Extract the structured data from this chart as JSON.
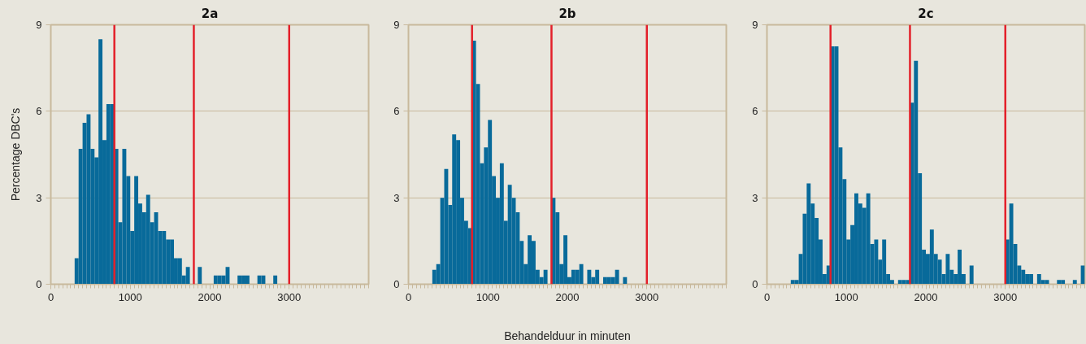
{
  "chart_data": [
    {
      "type": "histogram",
      "title": "2a",
      "ylabel": "Percentage DBC's",
      "color": "#086a9a",
      "bins": [
        300,
        350,
        400,
        450,
        500,
        550,
        600,
        650,
        700,
        750,
        800,
        850,
        900,
        950,
        1000,
        1050,
        1100,
        1150,
        1200,
        1250,
        1300,
        1350,
        1400,
        1450,
        1500,
        1550,
        1600,
        1650,
        1700,
        1750,
        1800,
        1850,
        1900,
        1950,
        2000,
        2050,
        2100,
        2150,
        2200,
        2250,
        2300,
        2350,
        2400,
        2450,
        2500,
        2550,
        2600,
        2650,
        2700,
        2750,
        2800,
        2850,
        2900,
        2950,
        3000,
        3050,
        3100,
        3150,
        3200,
        3250,
        3300,
        3350,
        3400,
        3450,
        3500,
        3550,
        3600,
        3650,
        3700,
        3750,
        3800,
        3850,
        3900,
        3950,
        4000
      ],
      "values": [
        0.9,
        4.7,
        5.6,
        5.9,
        4.7,
        4.4,
        8.5,
        5.0,
        6.25,
        6.25,
        4.7,
        2.15,
        4.7,
        3.75,
        1.85,
        3.75,
        2.8,
        2.5,
        3.1,
        2.15,
        2.5,
        1.85,
        1.85,
        1.55,
        1.55,
        0.9,
        0.9,
        0.3,
        0.6,
        0,
        0,
        0.6,
        0,
        0,
        0,
        0.3,
        0.3,
        0.3,
        0.6,
        0,
        0,
        0.3,
        0.3,
        0.3,
        0,
        0,
        0.3,
        0.3,
        0,
        0,
        0.3,
        0,
        0,
        0,
        0,
        0,
        0,
        0,
        0,
        0,
        0,
        0,
        0,
        0,
        0,
        0,
        0,
        0,
        0,
        0,
        0,
        0,
        0,
        0
      ],
      "xlim": [
        0,
        4000
      ],
      "ylim": [
        0,
        9
      ],
      "xticks": [
        0,
        1000,
        2000,
        3000
      ],
      "yticks": [
        0,
        3,
        6,
        9
      ],
      "grid": "y",
      "ref_lines": [
        {
          "axis": "x",
          "value": 800,
          "color": "#e3202a"
        },
        {
          "axis": "x",
          "value": 1800,
          "color": "#e3202a"
        },
        {
          "axis": "x",
          "value": 3000,
          "color": "#e3202a"
        }
      ]
    },
    {
      "type": "histogram",
      "title": "2b",
      "xlabel": "Behandelduur in minuten",
      "color": "#086a9a",
      "bins": [
        300,
        350,
        400,
        450,
        500,
        550,
        600,
        650,
        700,
        750,
        800,
        850,
        900,
        950,
        1000,
        1050,
        1100,
        1150,
        1200,
        1250,
        1300,
        1350,
        1400,
        1450,
        1500,
        1550,
        1600,
        1650,
        1700,
        1750,
        1800,
        1850,
        1900,
        1950,
        2000,
        2050,
        2100,
        2150,
        2200,
        2250,
        2300,
        2350,
        2400,
        2450,
        2500,
        2550,
        2600,
        2650,
        2700,
        2750,
        2800,
        2850,
        2900,
        2950,
        3000,
        3050,
        3100,
        3150,
        3200,
        3250,
        3300,
        3350,
        3400,
        3450,
        3500,
        3550,
        3600,
        3650,
        3700,
        3750,
        3800,
        3850,
        3900,
        3950,
        4000
      ],
      "values": [
        0.5,
        0.7,
        3.0,
        4.0,
        2.75,
        5.2,
        5.0,
        3.0,
        2.2,
        1.95,
        8.45,
        6.95,
        4.2,
        4.75,
        5.7,
        3.75,
        3.0,
        4.2,
        2.2,
        3.45,
        3.0,
        2.5,
        1.5,
        0.7,
        1.7,
        1.5,
        0.5,
        0.25,
        0.5,
        0,
        3.0,
        2.5,
        0.7,
        1.7,
        0.25,
        0.5,
        0.5,
        0.7,
        0,
        0.5,
        0.25,
        0.5,
        0,
        0.25,
        0.25,
        0.25,
        0.5,
        0,
        0.25,
        0,
        0,
        0,
        0,
        0,
        0,
        0,
        0,
        0,
        0,
        0,
        0,
        0,
        0,
        0,
        0,
        0,
        0,
        0,
        0,
        0,
        0,
        0,
        0,
        0
      ],
      "xlim": [
        0,
        4000
      ],
      "ylim": [
        0,
        9
      ],
      "xticks": [
        0,
        1000,
        2000,
        3000
      ],
      "yticks": [
        0,
        3,
        6,
        9
      ],
      "grid": "y",
      "ref_lines": [
        {
          "axis": "x",
          "value": 800,
          "color": "#e3202a"
        },
        {
          "axis": "x",
          "value": 1800,
          "color": "#e3202a"
        },
        {
          "axis": "x",
          "value": 3000,
          "color": "#e3202a"
        }
      ]
    },
    {
      "type": "histogram",
      "title": "2c",
      "color": "#086a9a",
      "bins": [
        300,
        350,
        400,
        450,
        500,
        550,
        600,
        650,
        700,
        750,
        800,
        850,
        900,
        950,
        1000,
        1050,
        1100,
        1150,
        1200,
        1250,
        1300,
        1350,
        1400,
        1450,
        1500,
        1550,
        1600,
        1650,
        1700,
        1750,
        1800,
        1850,
        1900,
        1950,
        2000,
        2050,
        2100,
        2150,
        2200,
        2250,
        2300,
        2350,
        2400,
        2450,
        2500,
        2550,
        2600,
        2650,
        2700,
        2750,
        2800,
        2850,
        2900,
        2950,
        3000,
        3050,
        3100,
        3150,
        3200,
        3250,
        3300,
        3350,
        3400,
        3450,
        3500,
        3550,
        3600,
        3650,
        3700,
        3750,
        3800,
        3850,
        3900,
        3950,
        4000
      ],
      "values": [
        0.15,
        0.15,
        1.05,
        2.45,
        3.5,
        2.8,
        2.3,
        1.55,
        0.35,
        0.65,
        8.25,
        8.25,
        4.75,
        3.65,
        1.55,
        2.05,
        3.15,
        2.8,
        2.65,
        3.15,
        1.4,
        1.55,
        0.85,
        1.55,
        0.35,
        0.15,
        0,
        0.15,
        0.15,
        0.15,
        6.3,
        7.75,
        3.85,
        1.2,
        1.05,
        1.9,
        1.05,
        0.85,
        0.35,
        1.05,
        0.5,
        0.35,
        1.2,
        0.35,
        0,
        0.65,
        0,
        0,
        0,
        0,
        0,
        0,
        0,
        0,
        1.55,
        2.8,
        1.4,
        0.65,
        0.5,
        0.35,
        0.35,
        0,
        0.35,
        0.15,
        0.15,
        0,
        0,
        0.15,
        0.15,
        0,
        0,
        0.15,
        0,
        0.65
      ],
      "xlim": [
        0,
        4000
      ],
      "ylim": [
        0,
        9
      ],
      "xticks": [
        0,
        1000,
        2000,
        3000
      ],
      "yticks": [
        0,
        3,
        6,
        9
      ],
      "grid": "y",
      "ref_lines": [
        {
          "axis": "x",
          "value": 800,
          "color": "#e3202a"
        },
        {
          "axis": "x",
          "value": 1800,
          "color": "#e3202a"
        },
        {
          "axis": "x",
          "value": 3000,
          "color": "#e3202a"
        }
      ]
    }
  ]
}
